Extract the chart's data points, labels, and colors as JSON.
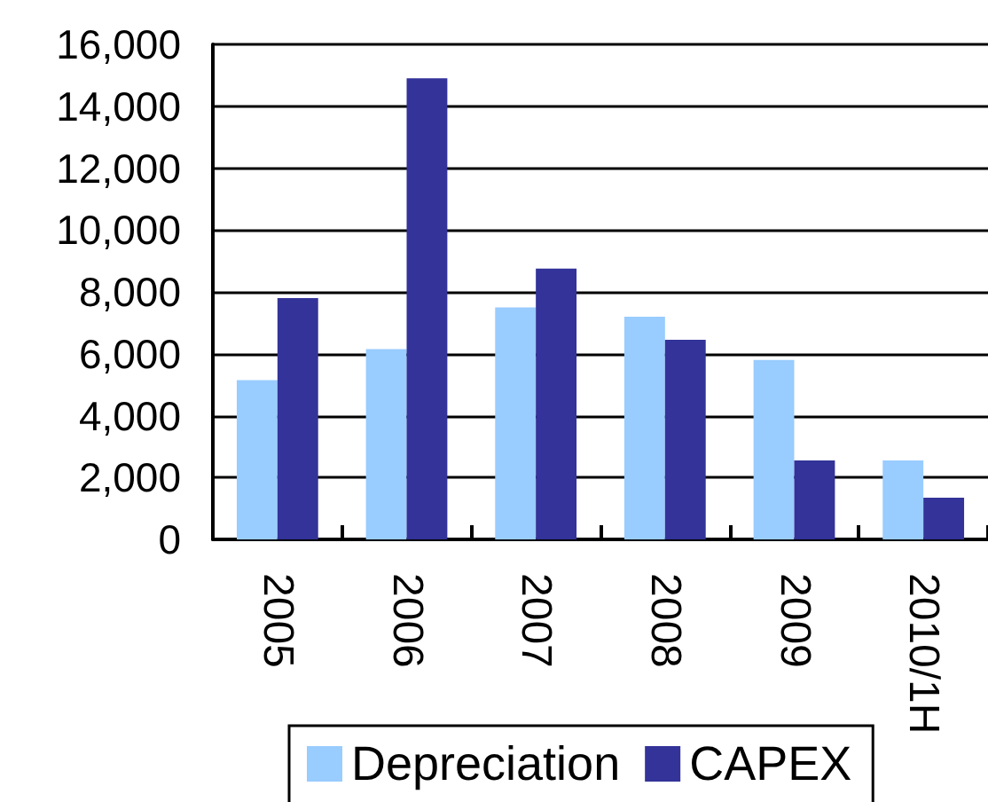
{
  "chart_data": {
    "type": "bar",
    "categories": [
      "2005",
      "2006",
      "2007",
      "2008",
      "2009",
      "2010/1H"
    ],
    "series": [
      {
        "name": "Depreciation",
        "color": "#99ccff",
        "values": [
          5150,
          6150,
          7500,
          7200,
          5800,
          2550
        ]
      },
      {
        "name": "CAPEX",
        "color": "#333399",
        "values": [
          7800,
          14900,
          8750,
          6450,
          2550,
          1350
        ]
      }
    ],
    "ylim": [
      0,
      16000
    ],
    "yticks": [
      {
        "value": 0,
        "label": "0"
      },
      {
        "value": 2000,
        "label": "2,000"
      },
      {
        "value": 4000,
        "label": "4,000"
      },
      {
        "value": 6000,
        "label": "6,000"
      },
      {
        "value": 8000,
        "label": "8,000"
      },
      {
        "value": 10000,
        "label": "10,000"
      },
      {
        "value": 12000,
        "label": "12,000"
      },
      {
        "value": 14000,
        "label": "14,000"
      },
      {
        "value": 16000,
        "label": "16,000"
      }
    ],
    "grid": "y",
    "legend": "bottom"
  }
}
